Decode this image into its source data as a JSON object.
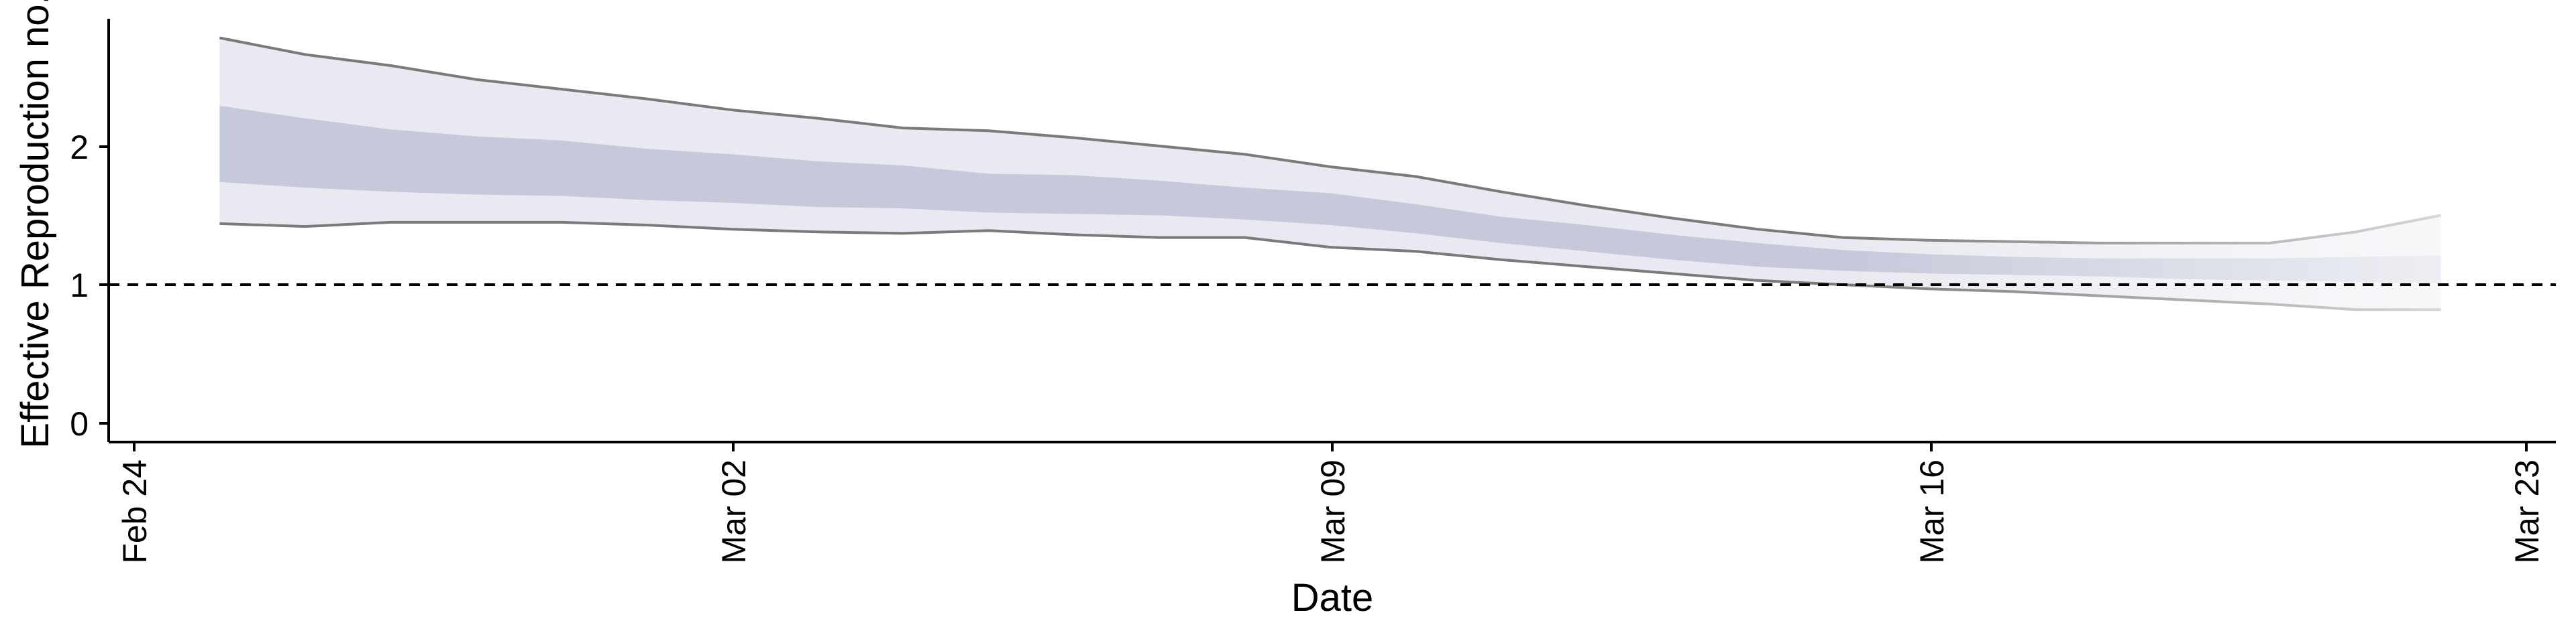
{
  "chart_data": {
    "type": "area",
    "title": "",
    "xlabel": "Date",
    "ylabel": "Effective Reproduction no.",
    "x_tick_labels": [
      "Feb 24",
      "Mar 02",
      "Mar 09",
      "Mar 16",
      "Mar 23"
    ],
    "y_tick_labels": [
      "0",
      "1",
      "2"
    ],
    "xlim": [
      "2020-02-24",
      "2020-03-23"
    ],
    "ylim": [
      -0.12,
      2.95
    ],
    "reference_line": {
      "y": 1,
      "style": "dashed"
    },
    "grid": false,
    "legend": "none",
    "colors": {
      "outer_band": "#e9eaf1",
      "inner_band": "#c5c9da",
      "outer_band_edge": "#7a7a7a",
      "forecast_fade": "#ffffff"
    },
    "forecast_from": "2020-03-15",
    "dates": [
      "2020-02-25",
      "2020-02-26",
      "2020-02-27",
      "2020-02-28",
      "2020-02-29",
      "2020-03-01",
      "2020-03-02",
      "2020-03-03",
      "2020-03-04",
      "2020-03-05",
      "2020-03-06",
      "2020-03-07",
      "2020-03-08",
      "2020-03-09",
      "2020-03-10",
      "2020-03-11",
      "2020-03-12",
      "2020-03-13",
      "2020-03-14",
      "2020-03-15",
      "2020-03-16",
      "2020-03-17",
      "2020-03-18",
      "2020-03-19",
      "2020-03-20",
      "2020-03-21",
      "2020-03-22"
    ],
    "series": [
      {
        "name": "",
        "role": "outer_upper",
        "values": [
          2.78,
          2.66,
          2.58,
          2.48,
          2.41,
          2.34,
          2.26,
          2.2,
          2.13,
          2.11,
          2.06,
          2.0,
          1.94,
          1.85,
          1.78,
          1.67,
          1.57,
          1.48,
          1.4,
          1.34,
          1.32,
          1.31,
          1.3,
          1.3,
          1.3,
          1.38,
          1.5
        ]
      },
      {
        "name": "",
        "role": "inner_upper",
        "values": [
          2.29,
          2.2,
          2.12,
          2.07,
          2.04,
          1.98,
          1.94,
          1.89,
          1.86,
          1.8,
          1.79,
          1.75,
          1.7,
          1.66,
          1.58,
          1.49,
          1.43,
          1.36,
          1.3,
          1.25,
          1.22,
          1.2,
          1.19,
          1.19,
          1.19,
          1.2,
          1.21
        ]
      },
      {
        "name": "",
        "role": "inner_lower",
        "values": [
          1.74,
          1.7,
          1.67,
          1.65,
          1.64,
          1.61,
          1.59,
          1.56,
          1.55,
          1.52,
          1.51,
          1.5,
          1.47,
          1.43,
          1.37,
          1.3,
          1.24,
          1.18,
          1.13,
          1.1,
          1.08,
          1.07,
          1.06,
          1.04,
          1.03,
          1.02,
          1.01
        ]
      },
      {
        "name": "",
        "role": "outer_lower",
        "values": [
          1.44,
          1.42,
          1.45,
          1.45,
          1.45,
          1.43,
          1.4,
          1.38,
          1.37,
          1.39,
          1.36,
          1.34,
          1.34,
          1.27,
          1.24,
          1.18,
          1.13,
          1.08,
          1.03,
          1.0,
          0.97,
          0.95,
          0.92,
          0.89,
          0.86,
          0.82,
          0.82
        ]
      }
    ]
  }
}
